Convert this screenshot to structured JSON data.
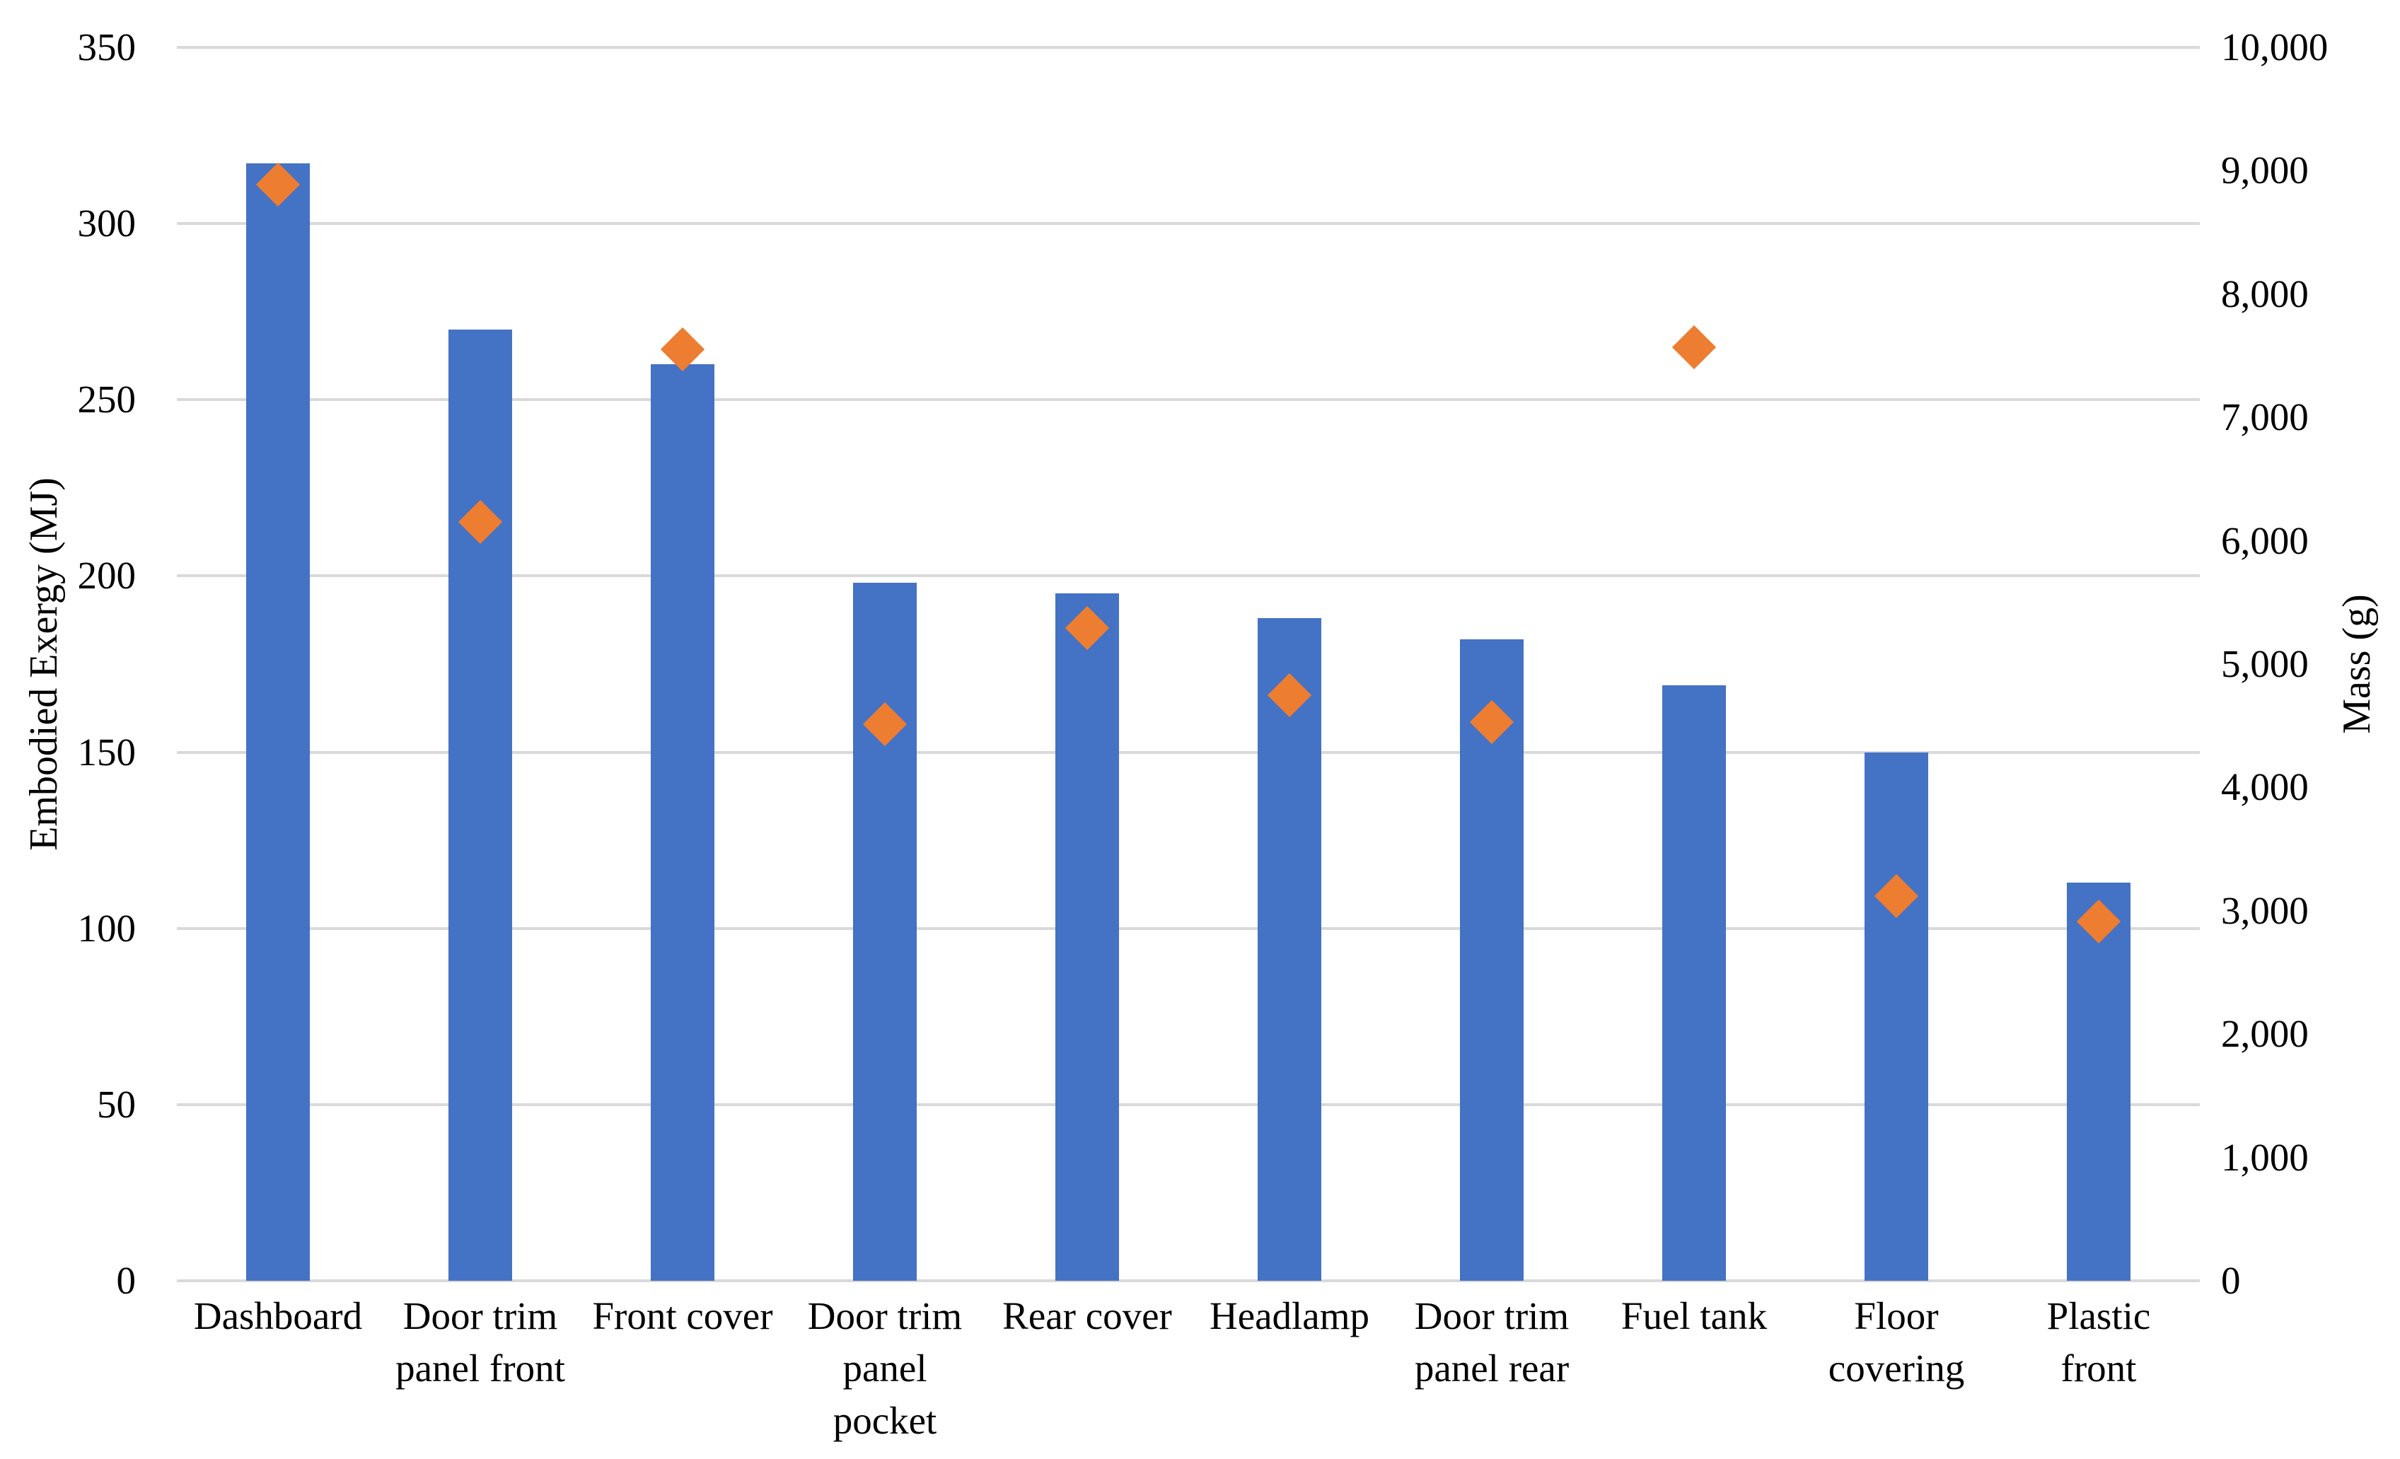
{
  "chart_data": {
    "type": "bar",
    "subtype": "combo-bar-with-scatter-diamonds",
    "title": "",
    "categories": [
      [
        "Dashboard"
      ],
      [
        "Door trim",
        "panel front"
      ],
      [
        "Front cover"
      ],
      [
        "Door trim",
        "panel",
        "pocket"
      ],
      [
        "Rear cover"
      ],
      [
        "Headlamp"
      ],
      [
        "Door trim",
        "panel rear"
      ],
      [
        "Fuel tank"
      ],
      [
        "Floor",
        "covering"
      ],
      [
        "Plastic",
        "front"
      ]
    ],
    "series": [
      {
        "name": "Embodied Exergy",
        "type": "bar",
        "axis": "left",
        "color": "#4472C4",
        "values": [
          317,
          270,
          260,
          198,
          195,
          188,
          182,
          169,
          150,
          113
        ]
      },
      {
        "name": "Mass",
        "type": "scatter",
        "marker": "diamond",
        "axis": "right",
        "color": "#ED7D31",
        "values": [
          8890,
          6150,
          7550,
          4510,
          5290,
          4750,
          4530,
          7570,
          3120,
          2910
        ]
      }
    ],
    "left_axis": {
      "title": "Embodied Exergy (MJ)",
      "min": 0,
      "max": 350,
      "step": 50,
      "tick_labels": [
        "0",
        "50",
        "100",
        "150",
        "200",
        "250",
        "300",
        "350"
      ]
    },
    "right_axis": {
      "title": "Mass (g)",
      "min": 0,
      "max": 10000,
      "step": 1000,
      "tick_labels": [
        "0",
        "1,000",
        "2,000",
        "3,000",
        "4,000",
        "5,000",
        "6,000",
        "7,000",
        "8,000",
        "9,000",
        "10,000"
      ]
    },
    "grid": "horizontal",
    "gridline_color": "#D9D9D9",
    "background_color": "#FFFFFF",
    "legend": "none"
  }
}
